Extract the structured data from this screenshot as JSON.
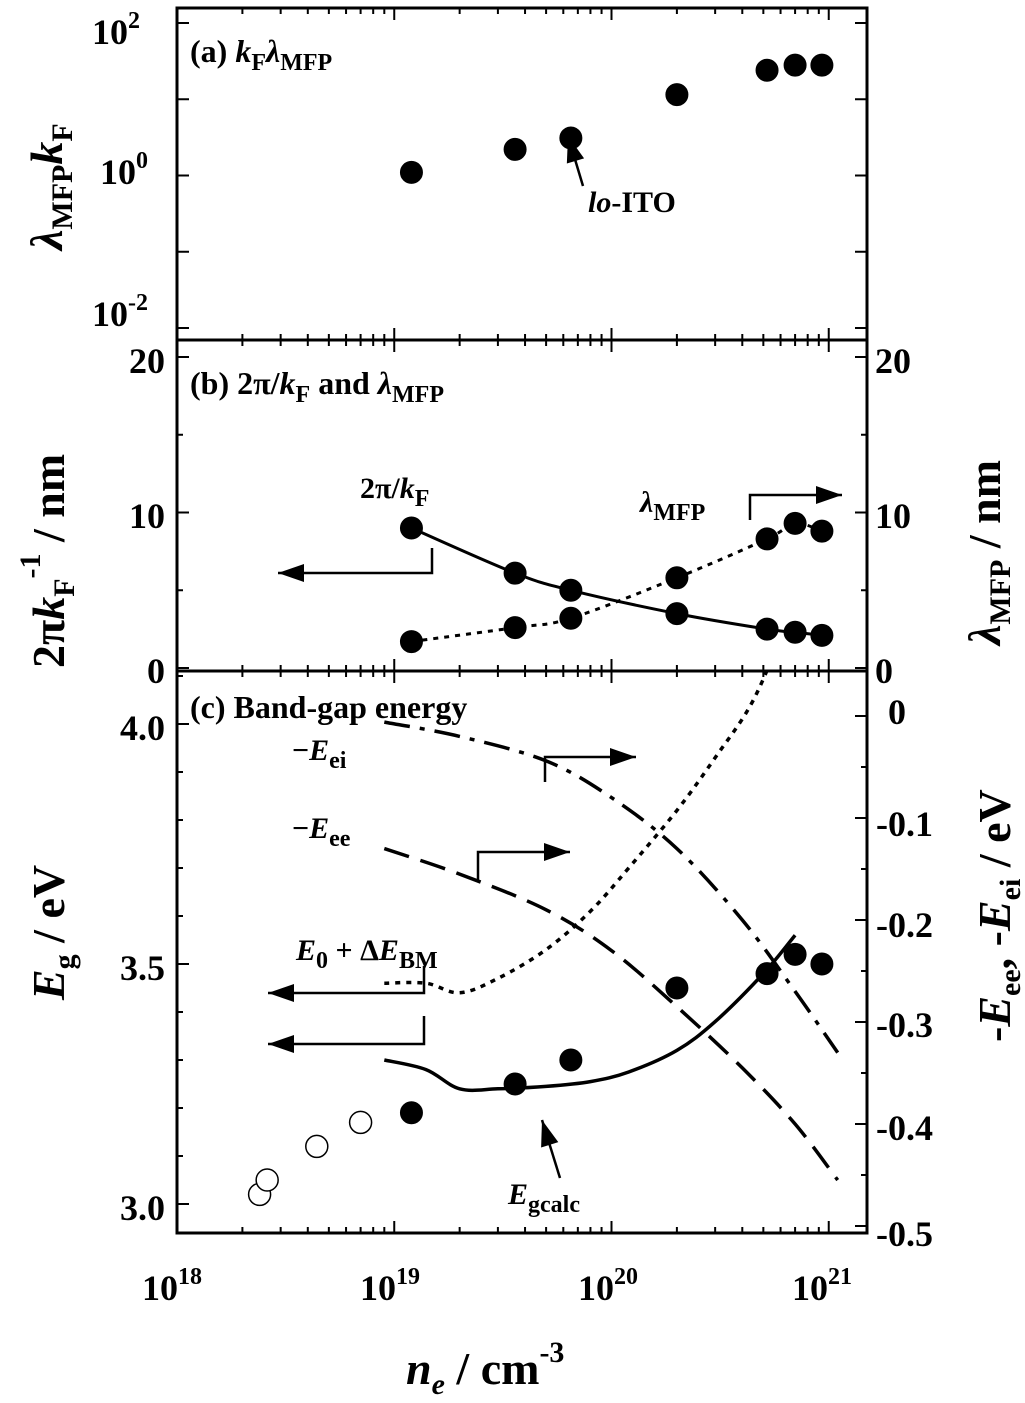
{
  "chart_data": [
    {
      "panel": "a",
      "type": "scatter",
      "title": "(a) kFλMFP",
      "ylabel": "λMFPkF",
      "x_scale": "log",
      "y_scale": "log",
      "xlim": [
        1e+18,
        1.5e+21
      ],
      "ylim": [
        0.005,
        100
      ],
      "y_ticks": [
        {
          "base": "10",
          "exp": "2"
        },
        {
          "base": "10",
          "exp": "0"
        },
        {
          "base": "10",
          "exp": "-2"
        }
      ],
      "series": [
        {
          "x": [
            1.2e+19,
            3.6e+19,
            6.5e+19,
            2e+20,
            5.2e+20,
            7e+20,
            9.3e+20
          ],
          "y": [
            1.1,
            2.2,
            3.1,
            11.5,
            24,
            28,
            28
          ]
        }
      ],
      "annotations": [
        {
          "text_italic": "lo",
          "text": "-ITO"
        }
      ]
    },
    {
      "panel": "b",
      "type": "line",
      "title": "(b) 2π/kF and λMFP",
      "ylabel_left": "2πkF-1 / nm",
      "ylabel_right": "λMFP / nm",
      "x_scale": "log",
      "xlim": [
        1e+18,
        1.5e+21
      ],
      "ylim": [
        0,
        20
      ],
      "yticks": [
        "0",
        "10",
        "20"
      ],
      "series": [
        {
          "name": "2π/kF",
          "axis": "left",
          "style": "solid",
          "x": [
            1.2e+19,
            3.6e+19,
            6.5e+19,
            2e+20,
            5.2e+20,
            7e+20,
            9.3e+20
          ],
          "y": [
            9.0,
            6.1,
            5.0,
            3.5,
            2.5,
            2.3,
            2.1
          ]
        },
        {
          "name": "λMFP",
          "axis": "right",
          "style": "dotted",
          "x": [
            1.2e+19,
            3.6e+19,
            6.5e+19,
            2e+20,
            5.2e+20,
            7e+20,
            9.3e+20
          ],
          "y": [
            1.7,
            2.6,
            3.2,
            5.8,
            8.3,
            9.3,
            8.8
          ]
        }
      ]
    },
    {
      "panel": "c",
      "type": "line",
      "title": "(c) Band-gap energy",
      "ylabel_left": "Eg / eV",
      "ylabel_right": "-Eee, -Eei / eV",
      "xlabel": "ne / cm-3",
      "x_scale": "log",
      "xlim": [
        1e+18,
        1.5e+21
      ],
      "ylim_left": [
        2.94,
        4.1
      ],
      "ylim_right": [
        -0.5,
        0.02
      ],
      "yticks_left": [
        "3.0",
        "3.5",
        "4.0"
      ],
      "yticks_right": [
        "0",
        "-0.1",
        "-0.2",
        "-0.3",
        "-0.4",
        "-0.5"
      ],
      "x_ticks": [
        {
          "base": "10",
          "exp": "18"
        },
        {
          "base": "10",
          "exp": "19"
        },
        {
          "base": "10",
          "exp": "20"
        },
        {
          "base": "10",
          "exp": "21"
        }
      ],
      "series": [
        {
          "name": "Egcalc",
          "axis": "left",
          "style": "solid",
          "x": [
            9e+18,
            1.4e+19,
            2e+19,
            3e+19,
            5e+19,
            8e+19,
            1.2e+20,
            2e+20,
            3e+20,
            5e+20,
            7e+20
          ],
          "y": [
            3.3,
            3.28,
            3.24,
            3.24,
            3.245,
            3.255,
            3.275,
            3.32,
            3.38,
            3.48,
            3.56
          ]
        },
        {
          "name": "E0 + ΔEBM",
          "axis": "left",
          "style": "dotted",
          "x": [
            9e+18,
            1.4e+19,
            2e+19,
            3e+19,
            5e+19,
            8e+19,
            1.2e+20,
            2e+20,
            3e+20,
            4.5e+20,
            6.5e+20
          ],
          "y": [
            3.46,
            3.46,
            3.44,
            3.47,
            3.53,
            3.61,
            3.7,
            3.82,
            3.93,
            4.05,
            4.22
          ]
        },
        {
          "name": "−Eei",
          "axis": "right",
          "style": "dash-dot",
          "x": [
            9e+18,
            2e+19,
            5e+19,
            1e+20,
            2e+20,
            4e+20,
            7e+20,
            1.1e+21
          ],
          "y": [
            -0.006,
            -0.02,
            -0.044,
            -0.08,
            -0.13,
            -0.2,
            -0.27,
            -0.33
          ]
        },
        {
          "name": "−Eee",
          "axis": "right",
          "style": "dashed",
          "x": [
            9e+18,
            2e+19,
            5e+19,
            1e+20,
            2e+20,
            4e+20,
            7e+20,
            1.1e+21
          ],
          "y": [
            -0.13,
            -0.155,
            -0.19,
            -0.23,
            -0.285,
            -0.345,
            -0.4,
            -0.455
          ]
        }
      ],
      "markers_filled": {
        "x": [
          1.2e+19,
          3.6e+19,
          6.5e+19,
          2e+20,
          5.2e+20,
          7e+20,
          9.3e+20
        ],
        "y": [
          3.19,
          3.25,
          3.3,
          3.45,
          3.48,
          3.52,
          3.5
        ]
      },
      "markers_open": {
        "x": [
          2.4e+18,
          2.6e+18,
          4.4e+18,
          7e+18
        ],
        "y": [
          3.02,
          3.05,
          3.12,
          3.17
        ]
      }
    }
  ],
  "labels": {
    "a_title": "(a) ",
    "a_title_k": "k",
    "a_title_F": "F",
    "a_title_lam": "λ",
    "a_title_MFP": "MFP",
    "a_ylabel_lam": "λ",
    "a_ylabel_MFP": "MFP",
    "a_ylabel_k": "k",
    "a_ylabel_F": "F",
    "a_ann_lo": "lo",
    "a_ann_rest": "-ITO",
    "b_title_1": "(b) 2π/",
    "b_title_k": "k",
    "b_title_F": "F",
    "b_title_2": " and ",
    "b_title_lam": "λ",
    "b_title_MFP": "MFP",
    "b_lbl_2pi": "2π/",
    "b_lbl_k": "k",
    "b_lbl_F": "F",
    "b_lbl_lam": "λ",
    "b_lbl_MFP": "MFP",
    "b_yleft_1": "2π",
    "b_yleft_k": "k",
    "b_yleft_F": "F",
    "b_yleft_sup": "-1",
    "b_yleft_unit": " / nm",
    "b_yright_lam": "λ",
    "b_yright_MFP": "MFP",
    "b_yright_unit": " / nm",
    "c_title": "(c) Band-gap energy",
    "c_lbl_eei_minus": "−",
    "c_lbl_eei_E": "E",
    "c_lbl_eei_sub": "ei",
    "c_lbl_eee_minus": "−",
    "c_lbl_eee_E": "E",
    "c_lbl_eee_sub": "ee",
    "c_lbl_e0_E": "E",
    "c_lbl_e0_sub": "0",
    "c_lbl_e0_plus": " + Δ",
    "c_lbl_e0_E2": "E",
    "c_lbl_e0_BM": "BM",
    "c_lbl_eg_E": "E",
    "c_lbl_eg_sub": "gcalc",
    "c_yleft_E": "E",
    "c_yleft_g": "g",
    "c_yleft_unit": " / eV",
    "c_yright_1": "-",
    "c_yright_E1": "E",
    "c_yright_ee": "ee",
    "c_yright_2": ", -",
    "c_yright_E2": "E",
    "c_yright_ei": "ei",
    "c_yright_unit": " / eV",
    "x_label_n": "n",
    "x_label_e": "e",
    "x_label_unit": " / cm",
    "x_label_sup": "-3"
  }
}
